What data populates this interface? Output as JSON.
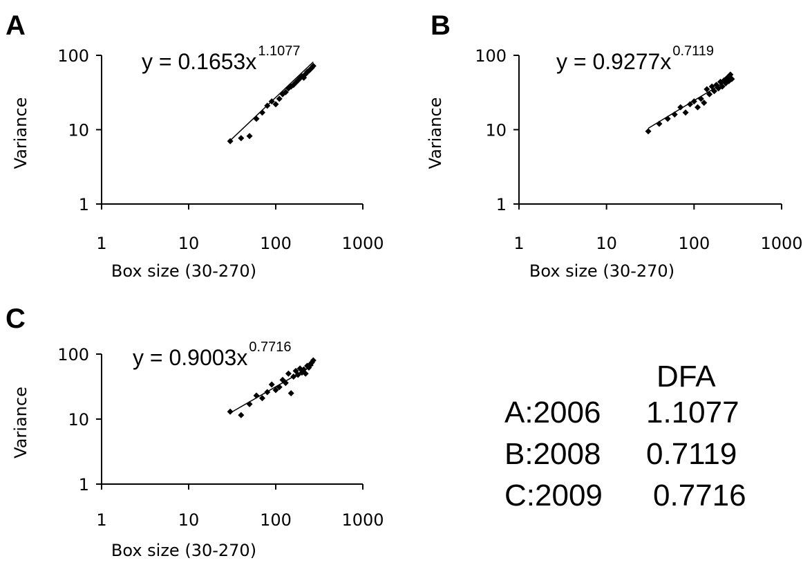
{
  "chart_data": [
    {
      "type": "scatter",
      "panel": "A",
      "equation": {
        "base": "y = 0.1653x",
        "exponent": "1.1077"
      },
      "fit": {
        "coefficient": 0.1653,
        "exponent": 1.1077
      },
      "xlabel": "Box size (30-270)",
      "ylabel": "Variance",
      "xscale": "log",
      "yscale": "log",
      "xlim": [
        1,
        1000
      ],
      "ylim": [
        1,
        100
      ],
      "xticks": [
        "1",
        "10",
        "100",
        "1000"
      ],
      "yticks": [
        "1",
        "10",
        "100"
      ],
      "grid": false,
      "points": [
        {
          "x": 30,
          "y": 7.0
        },
        {
          "x": 40,
          "y": 7.7
        },
        {
          "x": 50,
          "y": 8.2
        },
        {
          "x": 60,
          "y": 14
        },
        {
          "x": 70,
          "y": 17
        },
        {
          "x": 80,
          "y": 21
        },
        {
          "x": 90,
          "y": 24
        },
        {
          "x": 100,
          "y": 22
        },
        {
          "x": 110,
          "y": 26
        },
        {
          "x": 120,
          "y": 30
        },
        {
          "x": 130,
          "y": 32
        },
        {
          "x": 140,
          "y": 36
        },
        {
          "x": 150,
          "y": 38
        },
        {
          "x": 160,
          "y": 40
        },
        {
          "x": 170,
          "y": 43
        },
        {
          "x": 180,
          "y": 46
        },
        {
          "x": 190,
          "y": 49
        },
        {
          "x": 200,
          "y": 52
        },
        {
          "x": 210,
          "y": 50
        },
        {
          "x": 220,
          "y": 56
        },
        {
          "x": 230,
          "y": 60
        },
        {
          "x": 240,
          "y": 62
        },
        {
          "x": 250,
          "y": 65
        },
        {
          "x": 260,
          "y": 68
        },
        {
          "x": 270,
          "y": 72
        }
      ]
    },
    {
      "type": "scatter",
      "panel": "B",
      "equation": {
        "base": "y = 0.9277x",
        "exponent": "0.7119"
      },
      "fit": {
        "coefficient": 0.9277,
        "exponent": 0.7119
      },
      "xlabel": "Box size (30-270)",
      "ylabel": "Variance",
      "xscale": "log",
      "yscale": "log",
      "xlim": [
        1,
        1000
      ],
      "ylim": [
        1,
        100
      ],
      "xticks": [
        "1",
        "10",
        "100",
        "1000"
      ],
      "yticks": [
        "1",
        "10",
        "100"
      ],
      "grid": false,
      "points": [
        {
          "x": 30,
          "y": 9.5
        },
        {
          "x": 40,
          "y": 12
        },
        {
          "x": 50,
          "y": 14
        },
        {
          "x": 60,
          "y": 16
        },
        {
          "x": 70,
          "y": 20
        },
        {
          "x": 80,
          "y": 17
        },
        {
          "x": 90,
          "y": 22
        },
        {
          "x": 100,
          "y": 24
        },
        {
          "x": 110,
          "y": 20
        },
        {
          "x": 120,
          "y": 26
        },
        {
          "x": 130,
          "y": 23
        },
        {
          "x": 140,
          "y": 35
        },
        {
          "x": 150,
          "y": 30
        },
        {
          "x": 160,
          "y": 38
        },
        {
          "x": 170,
          "y": 33
        },
        {
          "x": 180,
          "y": 40
        },
        {
          "x": 190,
          "y": 36
        },
        {
          "x": 200,
          "y": 44
        },
        {
          "x": 210,
          "y": 38
        },
        {
          "x": 220,
          "y": 46
        },
        {
          "x": 230,
          "y": 42
        },
        {
          "x": 240,
          "y": 50
        },
        {
          "x": 250,
          "y": 45
        },
        {
          "x": 260,
          "y": 55
        },
        {
          "x": 270,
          "y": 48
        }
      ]
    },
    {
      "type": "scatter",
      "panel": "C",
      "equation": {
        "base": "y = 0.9003x",
        "exponent": "0.7716"
      },
      "fit": {
        "coefficient": 0.9003,
        "exponent": 0.7716
      },
      "xlabel": "Box size (30-270)",
      "ylabel": "Variance",
      "xscale": "log",
      "yscale": "log",
      "xlim": [
        1,
        1000
      ],
      "ylim": [
        1,
        100
      ],
      "xticks": [
        "1",
        "10",
        "100",
        "1000"
      ],
      "yticks": [
        "1",
        "10",
        "100"
      ],
      "grid": false,
      "points": [
        {
          "x": 30,
          "y": 13
        },
        {
          "x": 40,
          "y": 11.5
        },
        {
          "x": 50,
          "y": 17
        },
        {
          "x": 60,
          "y": 23
        },
        {
          "x": 70,
          "y": 21
        },
        {
          "x": 80,
          "y": 26
        },
        {
          "x": 90,
          "y": 34
        },
        {
          "x": 100,
          "y": 28
        },
        {
          "x": 110,
          "y": 31
        },
        {
          "x": 120,
          "y": 40
        },
        {
          "x": 130,
          "y": 36
        },
        {
          "x": 140,
          "y": 50
        },
        {
          "x": 150,
          "y": 25
        },
        {
          "x": 160,
          "y": 45
        },
        {
          "x": 170,
          "y": 55
        },
        {
          "x": 180,
          "y": 48
        },
        {
          "x": 190,
          "y": 60
        },
        {
          "x": 200,
          "y": 52
        },
        {
          "x": 210,
          "y": 58
        },
        {
          "x": 220,
          "y": 50
        },
        {
          "x": 230,
          "y": 66
        },
        {
          "x": 240,
          "y": 62
        },
        {
          "x": 250,
          "y": 70
        },
        {
          "x": 260,
          "y": 74
        },
        {
          "x": 270,
          "y": 80
        }
      ]
    }
  ],
  "summary": {
    "header": "DFA",
    "rows": [
      {
        "label": "A:2006",
        "value": "1.1077"
      },
      {
        "label": "B:2008",
        "value": "0.7119"
      },
      {
        "label": "C:2009",
        "value": "0.7716"
      }
    ]
  }
}
